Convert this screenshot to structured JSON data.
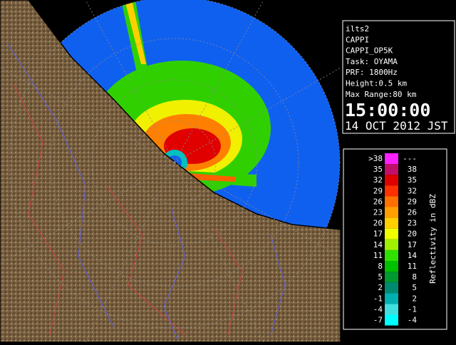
{
  "info": {
    "lines": [
      "ilts2",
      "CAPPI",
      "CAPPI_OP5K",
      "Task: OYAMA",
      "PRF: 1800Hz",
      "Height:0.5 km",
      "Max Range:80 km"
    ],
    "time": "15:00:00",
    "date": "14 OCT 2012 JST"
  },
  "legend": {
    "title": "Reflectivity in dBZ",
    "rows": [
      {
        "low": ">38",
        "high": "---",
        "color": "#ff20ff"
      },
      {
        "low": "35",
        "high": "38",
        "color": "#c0106a"
      },
      {
        "low": "32",
        "high": "35",
        "color": "#e00000"
      },
      {
        "low": "29",
        "high": "32",
        "color": "#ff3000"
      },
      {
        "low": "26",
        "high": "29",
        "color": "#ff7000"
      },
      {
        "low": "23",
        "high": "26",
        "color": "#ffa000"
      },
      {
        "low": "20",
        "high": "23",
        "color": "#ffd000"
      },
      {
        "low": "17",
        "high": "20",
        "color": "#f0ff00"
      },
      {
        "low": "14",
        "high": "17",
        "color": "#a0f000"
      },
      {
        "low": "11",
        "high": "14",
        "color": "#30e000"
      },
      {
        "low": "8",
        "high": "11",
        "color": "#00c000"
      },
      {
        "low": "5",
        "high": "8",
        "color": "#009a30"
      },
      {
        "low": "2",
        "high": "5",
        "color": "#008a70"
      },
      {
        "low": "-1",
        "high": "2",
        "color": "#00b0b0"
      },
      {
        "low": "-4",
        "high": "-1",
        "color": "#40e0e0"
      },
      {
        "low": "-7",
        "high": "-4",
        "color": "#00ffff"
      }
    ]
  }
}
